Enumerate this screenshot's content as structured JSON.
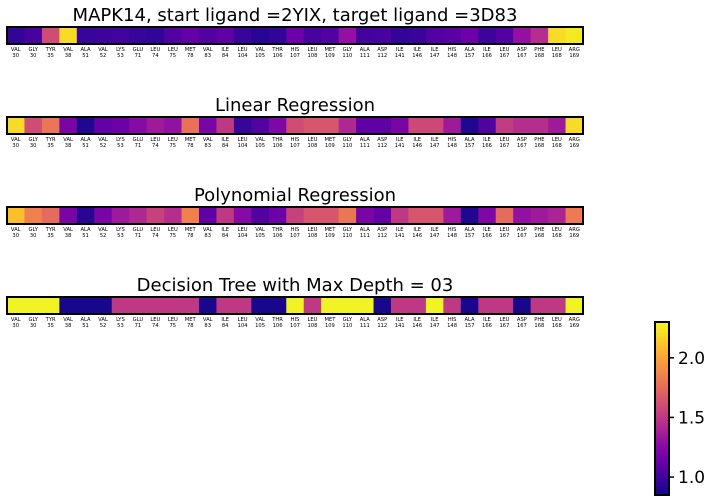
{
  "chart_data": {
    "type": "heatmap",
    "colormap": "plasma",
    "residue_labels": [
      [
        "VAL",
        "30"
      ],
      [
        "GLY",
        "30"
      ],
      [
        "TYR",
        "35"
      ],
      [
        "VAL",
        "38"
      ],
      [
        "ALA",
        "51"
      ],
      [
        "VAL",
        "52"
      ],
      [
        "LYS",
        "53"
      ],
      [
        "GLU",
        "71"
      ],
      [
        "LEU",
        "74"
      ],
      [
        "LEU",
        "75"
      ],
      [
        "MET",
        "78"
      ],
      [
        "VAL",
        "83"
      ],
      [
        "ILE",
        "84"
      ],
      [
        "LEU",
        "104"
      ],
      [
        "VAL",
        "105"
      ],
      [
        "THR",
        "106"
      ],
      [
        "HIS",
        "107"
      ],
      [
        "LEU",
        "108"
      ],
      [
        "MET",
        "109"
      ],
      [
        "GLY",
        "110"
      ],
      [
        "ALA",
        "111"
      ],
      [
        "ASP",
        "112"
      ],
      [
        "ILE",
        "141"
      ],
      [
        "ILE",
        "146"
      ],
      [
        "ILE",
        "147"
      ],
      [
        "HIS",
        "148"
      ],
      [
        "ALA",
        "157"
      ],
      [
        "ILE",
        "166"
      ],
      [
        "LEU",
        "167"
      ],
      [
        "ASP",
        "167"
      ],
      [
        "PHE",
        "168"
      ],
      [
        "LEU",
        "168"
      ],
      [
        "ARG",
        "169"
      ]
    ],
    "panels": [
      {
        "title": "MAPK14, start ligand =2YIX, target ligand =3D83",
        "values": [
          0.95,
          1.02,
          1.6,
          2.2,
          0.97,
          0.98,
          1.0,
          0.97,
          0.95,
          1.05,
          1.12,
          1.05,
          1.1,
          0.97,
          0.92,
          0.95,
          1.15,
          1.02,
          1.05,
          1.3,
          1.0,
          1.02,
          0.95,
          0.97,
          1.05,
          1.08,
          1.15,
          0.98,
          1.05,
          1.3,
          1.45,
          2.2,
          2.25
        ]
      },
      {
        "title": "Linear Regression",
        "values": [
          2.2,
          1.6,
          1.8,
          1.2,
          0.9,
          1.12,
          1.15,
          1.25,
          1.35,
          1.3,
          1.78,
          1.2,
          1.5,
          0.97,
          1.05,
          1.22,
          1.6,
          1.65,
          1.65,
          1.42,
          1.1,
          1.1,
          1.2,
          1.58,
          1.58,
          1.35,
          0.9,
          1.05,
          1.52,
          1.45,
          1.45,
          1.35,
          2.2
        ]
      },
      {
        "title": "Polynomial Regression",
        "values": [
          2.1,
          1.85,
          1.75,
          1.2,
          0.92,
          1.2,
          1.35,
          1.42,
          1.55,
          1.45,
          1.85,
          1.1,
          1.5,
          1.25,
          1.05,
          1.15,
          1.55,
          1.65,
          1.65,
          1.8,
          1.2,
          1.12,
          1.5,
          1.65,
          1.65,
          1.35,
          0.9,
          1.22,
          1.75,
          1.3,
          1.35,
          1.4,
          1.82
        ]
      },
      {
        "title": "Decision Tree with Max Depth = 03",
        "values": [
          2.28,
          2.28,
          2.28,
          0.88,
          0.88,
          0.88,
          1.5,
          1.5,
          1.5,
          1.5,
          1.5,
          0.88,
          1.5,
          1.5,
          0.88,
          0.88,
          2.28,
          1.5,
          2.28,
          2.28,
          2.28,
          0.88,
          1.5,
          1.5,
          2.28,
          1.5,
          0.88,
          1.5,
          1.5,
          0.88,
          1.5,
          1.5,
          2.28
        ]
      }
    ],
    "colorbar": {
      "ticks": [
        "1.0",
        "1.5",
        "2.0"
      ],
      "tick_values": [
        1.0,
        1.5,
        2.0
      ],
      "range": [
        0.85,
        2.3
      ]
    }
  }
}
